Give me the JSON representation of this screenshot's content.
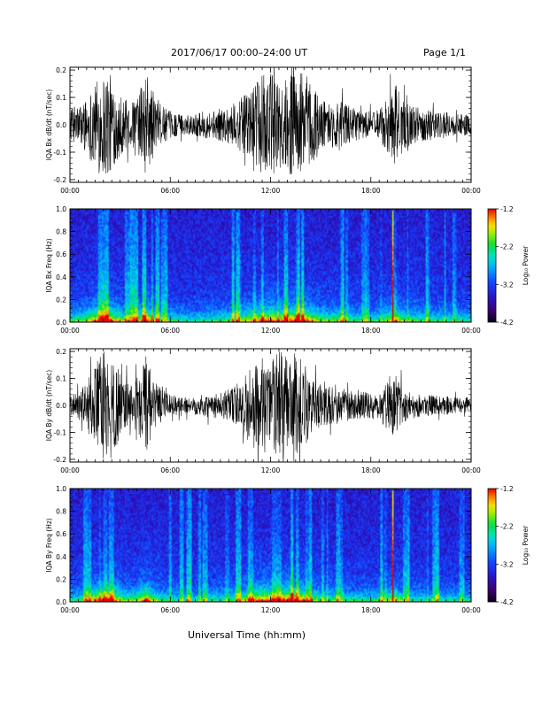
{
  "header": {
    "title": "2017/06/17   00:00–24:00 UT",
    "page": "Page 1/1"
  },
  "chart_data": [
    {
      "type": "line",
      "panel": "IQA Bx time series",
      "ylabel": "IQA Bx dB/dt (nT/sec)",
      "xlabel": "",
      "x_ticks": [
        "00:00",
        "06:00",
        "12:00",
        "18:00",
        "00:00"
      ],
      "y_ticks": [
        "-0.2",
        "-0.1",
        "0.0",
        "0.1",
        "0.2"
      ],
      "xlim_hours": [
        0,
        24
      ],
      "ylim": [
        -0.21,
        0.21
      ],
      "envelope_x_hours": [
        0,
        0.5,
        1.0,
        1.5,
        2.0,
        2.3,
        2.7,
        3.2,
        3.7,
        4.2,
        4.6,
        5.0,
        5.5,
        6.0,
        6.5,
        7.0,
        7.5,
        8.0,
        8.5,
        9.0,
        9.5,
        10.0,
        10.5,
        11.0,
        11.5,
        12.0,
        12.5,
        13.0,
        13.5,
        14.0,
        14.5,
        15.0,
        15.5,
        16.0,
        16.5,
        17.0,
        17.5,
        18.0,
        18.5,
        19.0,
        19.5,
        20.0,
        20.5,
        21.0,
        21.5,
        22.0,
        22.5,
        23.0,
        23.5,
        24.0
      ],
      "envelope_amplitude": [
        0.06,
        0.07,
        0.1,
        0.16,
        0.2,
        0.2,
        0.14,
        0.1,
        0.08,
        0.13,
        0.2,
        0.12,
        0.07,
        0.05,
        0.04,
        0.035,
        0.04,
        0.05,
        0.05,
        0.06,
        0.07,
        0.09,
        0.11,
        0.14,
        0.18,
        0.2,
        0.16,
        0.17,
        0.2,
        0.2,
        0.15,
        0.1,
        0.08,
        0.09,
        0.08,
        0.06,
        0.05,
        0.05,
        0.06,
        0.1,
        0.15,
        0.09,
        0.07,
        0.06,
        0.06,
        0.05,
        0.05,
        0.04,
        0.04,
        0.04
      ]
    },
    {
      "type": "heatmap",
      "panel": "IQA Bx spectrogram",
      "ylabel": "IQA Bx Freq (Hz)",
      "x_ticks": [
        "00:00",
        "06:00",
        "12:00",
        "18:00",
        "00:00"
      ],
      "y_ticks": [
        "0.0",
        "0.2",
        "0.4",
        "0.6",
        "0.8",
        "1.0"
      ],
      "xlim_hours": [
        0,
        24
      ],
      "ylim": [
        0,
        1.0
      ],
      "colorbar": {
        "label": "Log₁₀ Power",
        "ticks": [
          "-1.2",
          "-2.2",
          "-3.2",
          "-4.2"
        ],
        "range": [
          -4.2,
          -1.2
        ]
      },
      "vertical_line_hour": 19.3
    },
    {
      "type": "line",
      "panel": "IQA By time series",
      "ylabel": "IQA By dB/dt (nT/sec)",
      "xlabel": "",
      "x_ticks": [
        "00:00",
        "06:00",
        "12:00",
        "18:00",
        "00:00"
      ],
      "y_ticks": [
        "-0.2",
        "-0.1",
        "0.0",
        "0.1",
        "0.2"
      ],
      "xlim_hours": [
        0,
        24
      ],
      "ylim": [
        -0.21,
        0.21
      ],
      "envelope_x_hours": [
        0,
        0.5,
        1.0,
        1.5,
        2.0,
        2.3,
        2.7,
        3.2,
        3.7,
        4.2,
        4.6,
        5.0,
        5.5,
        6.0,
        6.5,
        7.0,
        7.5,
        8.0,
        8.5,
        9.0,
        9.5,
        10.0,
        10.5,
        11.0,
        11.5,
        12.0,
        12.5,
        13.0,
        13.5,
        14.0,
        14.5,
        15.0,
        15.5,
        16.0,
        16.5,
        17.0,
        17.5,
        18.0,
        18.5,
        19.0,
        19.5,
        20.0,
        20.5,
        21.0,
        21.5,
        22.0,
        22.5,
        23.0,
        23.5,
        24.0
      ],
      "envelope_amplitude": [
        0.04,
        0.05,
        0.09,
        0.16,
        0.2,
        0.2,
        0.16,
        0.1,
        0.08,
        0.12,
        0.2,
        0.1,
        0.06,
        0.04,
        0.035,
        0.03,
        0.035,
        0.04,
        0.05,
        0.05,
        0.06,
        0.08,
        0.12,
        0.16,
        0.18,
        0.18,
        0.2,
        0.2,
        0.2,
        0.16,
        0.1,
        0.08,
        0.07,
        0.07,
        0.06,
        0.05,
        0.05,
        0.05,
        0.06,
        0.09,
        0.12,
        0.06,
        0.05,
        0.04,
        0.04,
        0.04,
        0.035,
        0.03,
        0.03,
        0.03
      ]
    },
    {
      "type": "heatmap",
      "panel": "IQA By spectrogram",
      "ylabel": "IQA By Freq (Hz)",
      "x_ticks": [
        "00:00",
        "06:00",
        "12:00",
        "18:00",
        "00:00"
      ],
      "y_ticks": [
        "0.0",
        "0.2",
        "0.4",
        "0.6",
        "0.8",
        "1.0"
      ],
      "xlim_hours": [
        0,
        24
      ],
      "ylim": [
        0,
        1.0
      ],
      "colorbar": {
        "label": "Log₁₀ Power",
        "ticks": [
          "-1.2",
          "-2.2",
          "-3.2",
          "-4.2"
        ],
        "range": [
          -4.2,
          -1.2
        ]
      },
      "vertical_line_hour": 19.3
    }
  ],
  "xaxis_label": "Universal Time (hh:mm)"
}
